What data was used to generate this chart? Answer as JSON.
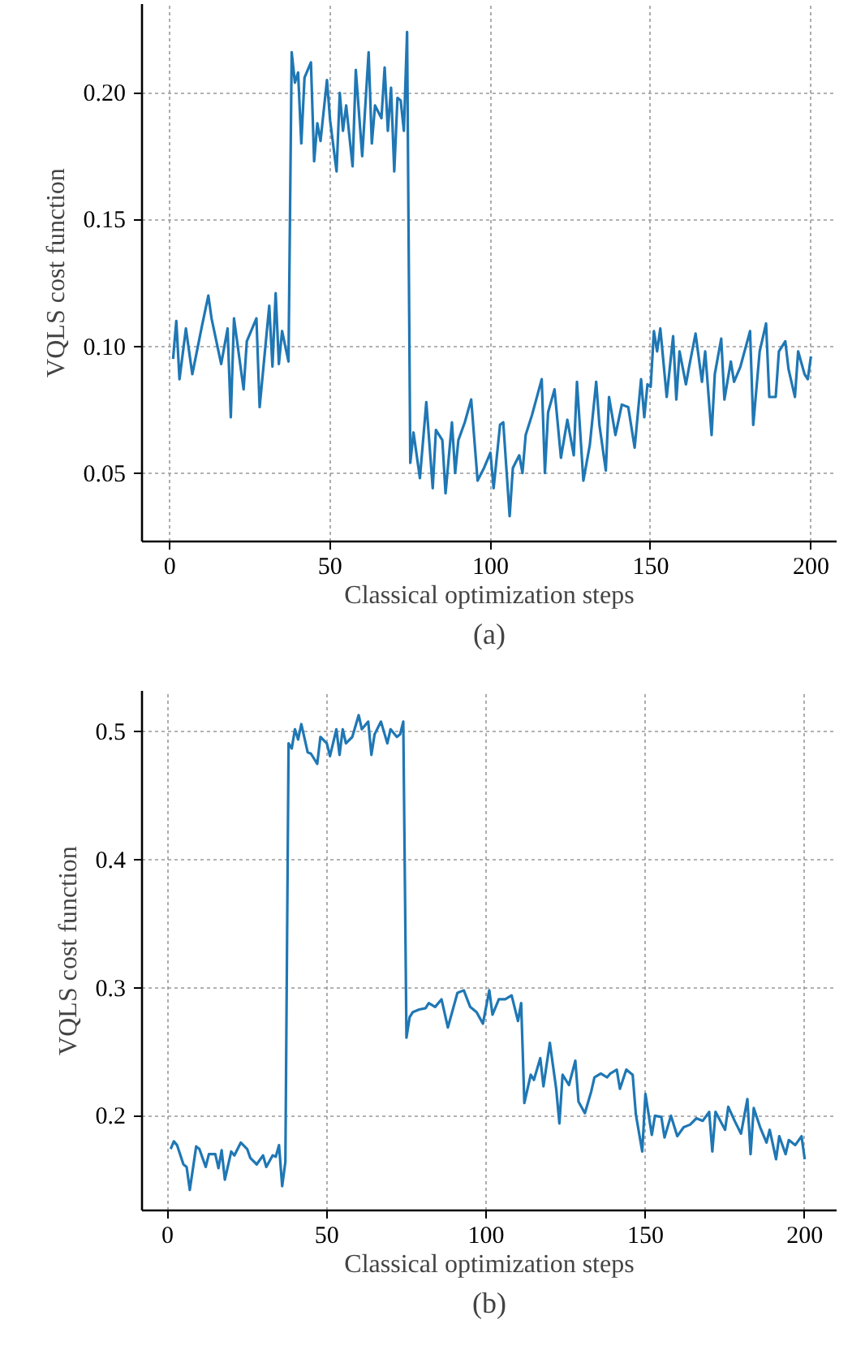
{
  "chart_data": [
    {
      "type": "line",
      "xlabel": "Classical optimization steps",
      "ylabel": "VQLS cost function",
      "annotations": [
        "(a)"
      ],
      "color": "#1f77b4",
      "grid": true,
      "xlim": [
        -8.7,
        208
      ],
      "ylim": [
        0.023,
        0.235
      ],
      "xticks": [
        0,
        50,
        100,
        150,
        200
      ],
      "yticks": [
        0.05,
        {
          "value": 0.1,
          "label": "0.10"
        },
        0.15,
        {
          "value": 0.2,
          "label": "0.20"
        }
      ],
      "x": [
        1,
        2,
        3,
        5,
        7,
        10,
        12,
        13,
        16,
        18,
        19,
        20,
        23,
        24,
        27,
        28,
        31,
        32,
        33,
        34,
        35,
        37,
        38,
        39,
        40,
        41,
        42,
        44,
        45,
        46,
        47,
        49,
        50,
        52,
        53,
        54,
        55,
        57,
        58,
        60,
        62,
        63,
        64,
        66,
        67,
        68,
        69,
        70,
        71,
        72,
        73,
        74,
        75,
        76,
        78,
        80,
        82,
        83,
        85,
        86,
        88,
        89,
        90,
        92,
        94,
        96,
        98,
        100,
        101,
        103,
        104,
        106,
        107,
        109,
        110,
        111,
        113,
        116,
        117,
        118,
        120,
        122,
        124,
        126,
        127,
        129,
        131,
        133,
        134,
        136,
        137,
        139,
        141,
        143,
        145,
        147,
        148,
        149,
        150,
        151,
        152,
        153,
        155,
        157,
        158,
        159,
        161,
        162,
        164,
        166,
        167,
        169,
        170,
        172,
        173,
        175,
        176,
        178,
        181,
        182,
        184,
        186,
        187,
        189,
        190,
        192,
        193,
        195,
        196,
        198,
        199,
        200
      ],
      "values": [
        0.095,
        0.11,
        0.087,
        0.107,
        0.089,
        0.108,
        0.12,
        0.111,
        0.093,
        0.107,
        0.072,
        0.111,
        0.083,
        0.102,
        0.111,
        0.076,
        0.116,
        0.092,
        0.121,
        0.093,
        0.106,
        0.094,
        0.216,
        0.204,
        0.208,
        0.18,
        0.206,
        0.212,
        0.173,
        0.188,
        0.181,
        0.205,
        0.189,
        0.169,
        0.2,
        0.185,
        0.195,
        0.171,
        0.209,
        0.175,
        0.216,
        0.18,
        0.195,
        0.19,
        0.21,
        0.185,
        0.202,
        0.169,
        0.198,
        0.197,
        0.185,
        0.224,
        0.054,
        0.066,
        0.048,
        0.078,
        0.044,
        0.067,
        0.063,
        0.042,
        0.07,
        0.05,
        0.063,
        0.07,
        0.079,
        0.047,
        0.052,
        0.058,
        0.044,
        0.069,
        0.07,
        0.033,
        0.052,
        0.057,
        0.05,
        0.065,
        0.073,
        0.087,
        0.05,
        0.074,
        0.083,
        0.056,
        0.071,
        0.057,
        0.086,
        0.047,
        0.061,
        0.086,
        0.069,
        0.051,
        0.08,
        0.065,
        0.077,
        0.076,
        0.06,
        0.087,
        0.072,
        0.085,
        0.084,
        0.106,
        0.098,
        0.107,
        0.08,
        0.104,
        0.079,
        0.098,
        0.085,
        0.092,
        0.105,
        0.086,
        0.098,
        0.065,
        0.089,
        0.103,
        0.079,
        0.094,
        0.086,
        0.092,
        0.106,
        0.069,
        0.098,
        0.109,
        0.08,
        0.08,
        0.098,
        0.102,
        0.091,
        0.08,
        0.098,
        0.089,
        0.087,
        0.096
      ]
    },
    {
      "type": "line",
      "xlabel": "Classical optimization steps",
      "ylabel": "VQLS cost function",
      "annotations": [
        "(b)"
      ],
      "color": "#1f77b4",
      "grid": true,
      "xlim": [
        -8,
        210
      ],
      "ylim": [
        0.126,
        0.532
      ],
      "xticks": [
        0,
        50,
        100,
        150,
        200
      ],
      "yticks": [
        0.2,
        0.3,
        0.4,
        0.5
      ],
      "x": [
        1,
        2,
        3,
        5,
        6,
        7,
        9,
        10,
        12,
        13,
        15,
        16,
        17,
        18,
        20,
        21,
        23,
        25,
        26,
        28,
        30,
        31,
        33,
        34,
        35,
        36,
        37,
        38,
        39,
        40,
        41,
        42,
        44,
        45,
        47,
        48,
        50,
        51,
        53,
        54,
        55,
        56,
        58,
        60,
        61,
        63,
        64,
        65,
        67,
        69,
        70,
        72,
        73,
        74,
        75,
        76,
        77,
        79,
        81,
        82,
        84,
        86,
        88,
        90,
        91,
        93,
        95,
        97,
        99,
        101,
        102,
        104,
        106,
        108,
        110,
        111,
        112,
        114,
        115,
        117,
        118,
        120,
        122,
        123,
        124,
        126,
        128,
        129,
        131,
        133,
        134,
        136,
        138,
        139,
        141,
        142,
        144,
        146,
        147,
        149,
        150,
        152,
        153,
        155,
        156,
        158,
        160,
        162,
        164,
        166,
        168,
        170,
        171,
        172,
        175,
        176,
        178,
        180,
        182,
        183,
        184,
        186,
        188,
        189,
        191,
        192,
        194,
        195,
        197,
        199,
        200
      ],
      "values": [
        0.174,
        0.18,
        0.177,
        0.162,
        0.16,
        0.142,
        0.176,
        0.174,
        0.16,
        0.17,
        0.17,
        0.159,
        0.173,
        0.15,
        0.172,
        0.169,
        0.179,
        0.174,
        0.167,
        0.162,
        0.169,
        0.16,
        0.169,
        0.168,
        0.177,
        0.145,
        0.164,
        0.491,
        0.487,
        0.502,
        0.494,
        0.506,
        0.484,
        0.483,
        0.475,
        0.496,
        0.491,
        0.481,
        0.502,
        0.482,
        0.502,
        0.491,
        0.496,
        0.513,
        0.502,
        0.508,
        0.482,
        0.498,
        0.508,
        0.491,
        0.502,
        0.496,
        0.498,
        0.508,
        0.261,
        0.277,
        0.281,
        0.283,
        0.284,
        0.288,
        0.285,
        0.291,
        0.269,
        0.287,
        0.296,
        0.298,
        0.285,
        0.281,
        0.272,
        0.298,
        0.279,
        0.291,
        0.291,
        0.294,
        0.274,
        0.288,
        0.21,
        0.232,
        0.228,
        0.245,
        0.223,
        0.257,
        0.221,
        0.194,
        0.232,
        0.224,
        0.243,
        0.211,
        0.202,
        0.219,
        0.23,
        0.233,
        0.23,
        0.233,
        0.236,
        0.221,
        0.236,
        0.232,
        0.201,
        0.172,
        0.217,
        0.185,
        0.2,
        0.199,
        0.183,
        0.2,
        0.184,
        0.191,
        0.193,
        0.198,
        0.196,
        0.203,
        0.172,
        0.203,
        0.189,
        0.207,
        0.196,
        0.186,
        0.213,
        0.17,
        0.206,
        0.191,
        0.179,
        0.189,
        0.166,
        0.184,
        0.17,
        0.181,
        0.177,
        0.184,
        0.166
      ]
    }
  ]
}
